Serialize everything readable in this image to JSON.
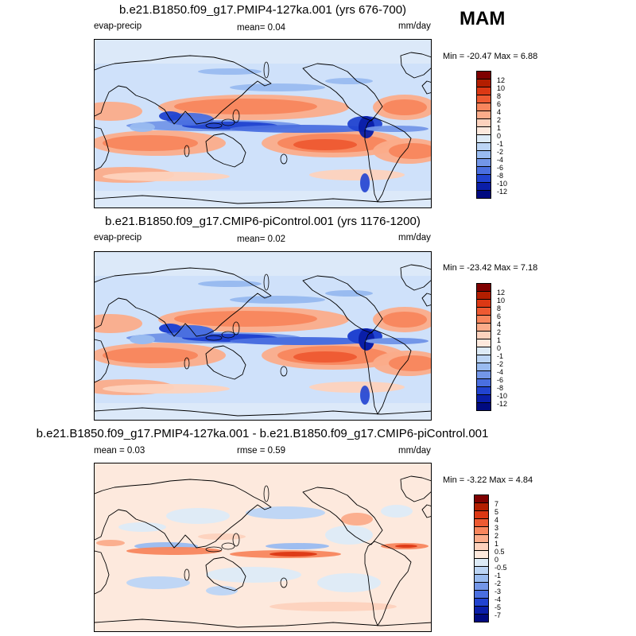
{
  "season": "MAM",
  "panels": [
    {
      "title": "b.e21.B1850.f09_g17.PMIP4-127ka.001 (yrs 676-700)",
      "left_label": "evap-precip",
      "stat1": "mean=   0.04",
      "stat2": "",
      "units": "mm/day",
      "minmax": "Min = -20.47 Max =   6.88",
      "style": "abs"
    },
    {
      "title": "b.e21.B1850.f09_g17.CMIP6-piControl.001 (yrs 1176-1200)",
      "left_label": "evap-precip",
      "stat1": "mean=   0.02",
      "stat2": "",
      "units": "mm/day",
      "minmax": "Min = -23.42 Max =   7.18",
      "style": "abs"
    },
    {
      "title": "b.e21.B1850.f09_g17.PMIP4-127ka.001 - b.e21.B1850.f09_g17.CMIP6-piControl.001",
      "left_label": "mean =   0.03",
      "stat1": "",
      "stat2": "rmse =   0.59",
      "units": "mm/day",
      "minmax": "Min =  -3.22 Max =   4.84",
      "style": "diff"
    }
  ],
  "colorbars": {
    "abs": {
      "labels": [
        "12",
        "10",
        "8",
        "6",
        "4",
        "2",
        "1",
        "0",
        "-1",
        "-2",
        "-4",
        "-6",
        "-8",
        "-10",
        "-12"
      ],
      "colors": [
        "#7f0000",
        "#b31e00",
        "#dc3814",
        "#ee5a32",
        "#f8865d",
        "#fbac8a",
        "#fdd2bd",
        "#fde9dd",
        "#ddebf7",
        "#bcd5f5",
        "#99bbf0",
        "#7396e8",
        "#4a6fe0",
        "#2143d0",
        "#0a1ea8",
        "#000a80"
      ]
    },
    "diff": {
      "labels": [
        "7",
        "5",
        "4",
        "3",
        "2",
        "1",
        "0.5",
        "0",
        "-0.5",
        "-1",
        "-2",
        "-3",
        "-4",
        "-5",
        "-7"
      ],
      "colors": [
        "#7f0000",
        "#b31e00",
        "#dc3814",
        "#ee5a32",
        "#f8865d",
        "#fbac8a",
        "#fdd2bd",
        "#fde9dd",
        "#ddebf7",
        "#bcd5f5",
        "#99bbf0",
        "#7396e8",
        "#4a6fe0",
        "#2143d0",
        "#0a1ea8",
        "#000a80"
      ]
    }
  }
}
